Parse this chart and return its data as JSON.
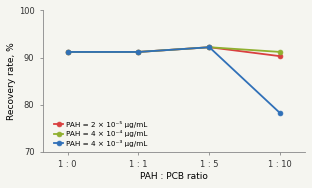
{
  "x_labels": [
    "1 : 0",
    "1 : 1",
    "1 : 5",
    "1 : 10"
  ],
  "x_positions": [
    0,
    1,
    2,
    3
  ],
  "series": [
    {
      "label": "PAH = 2 × 10⁻⁵ μg/mL",
      "color": "#d94040",
      "marker": "o",
      "values": [
        91.2,
        91.2,
        92.2,
        90.3
      ]
    },
    {
      "label": "PAH = 4 × 10⁻⁴ μg/mL",
      "color": "#90b030",
      "marker": "o",
      "values": [
        91.2,
        91.2,
        92.2,
        91.2
      ]
    },
    {
      "label": "PAH = 4 × 10⁻³ μg/mL",
      "color": "#3070b8",
      "marker": "o",
      "values": [
        91.2,
        91.2,
        92.2,
        78.2
      ]
    }
  ],
  "ylabel": "Recovery rate, %",
  "xlabel": "PAH : PCB ratio",
  "ylim": [
    70,
    100
  ],
  "yticks": [
    70,
    80,
    90,
    100
  ],
  "background_color": "#f5f5f0",
  "legend_fontsize": 5.2,
  "axis_fontsize": 6.5,
  "tick_fontsize": 6.0
}
